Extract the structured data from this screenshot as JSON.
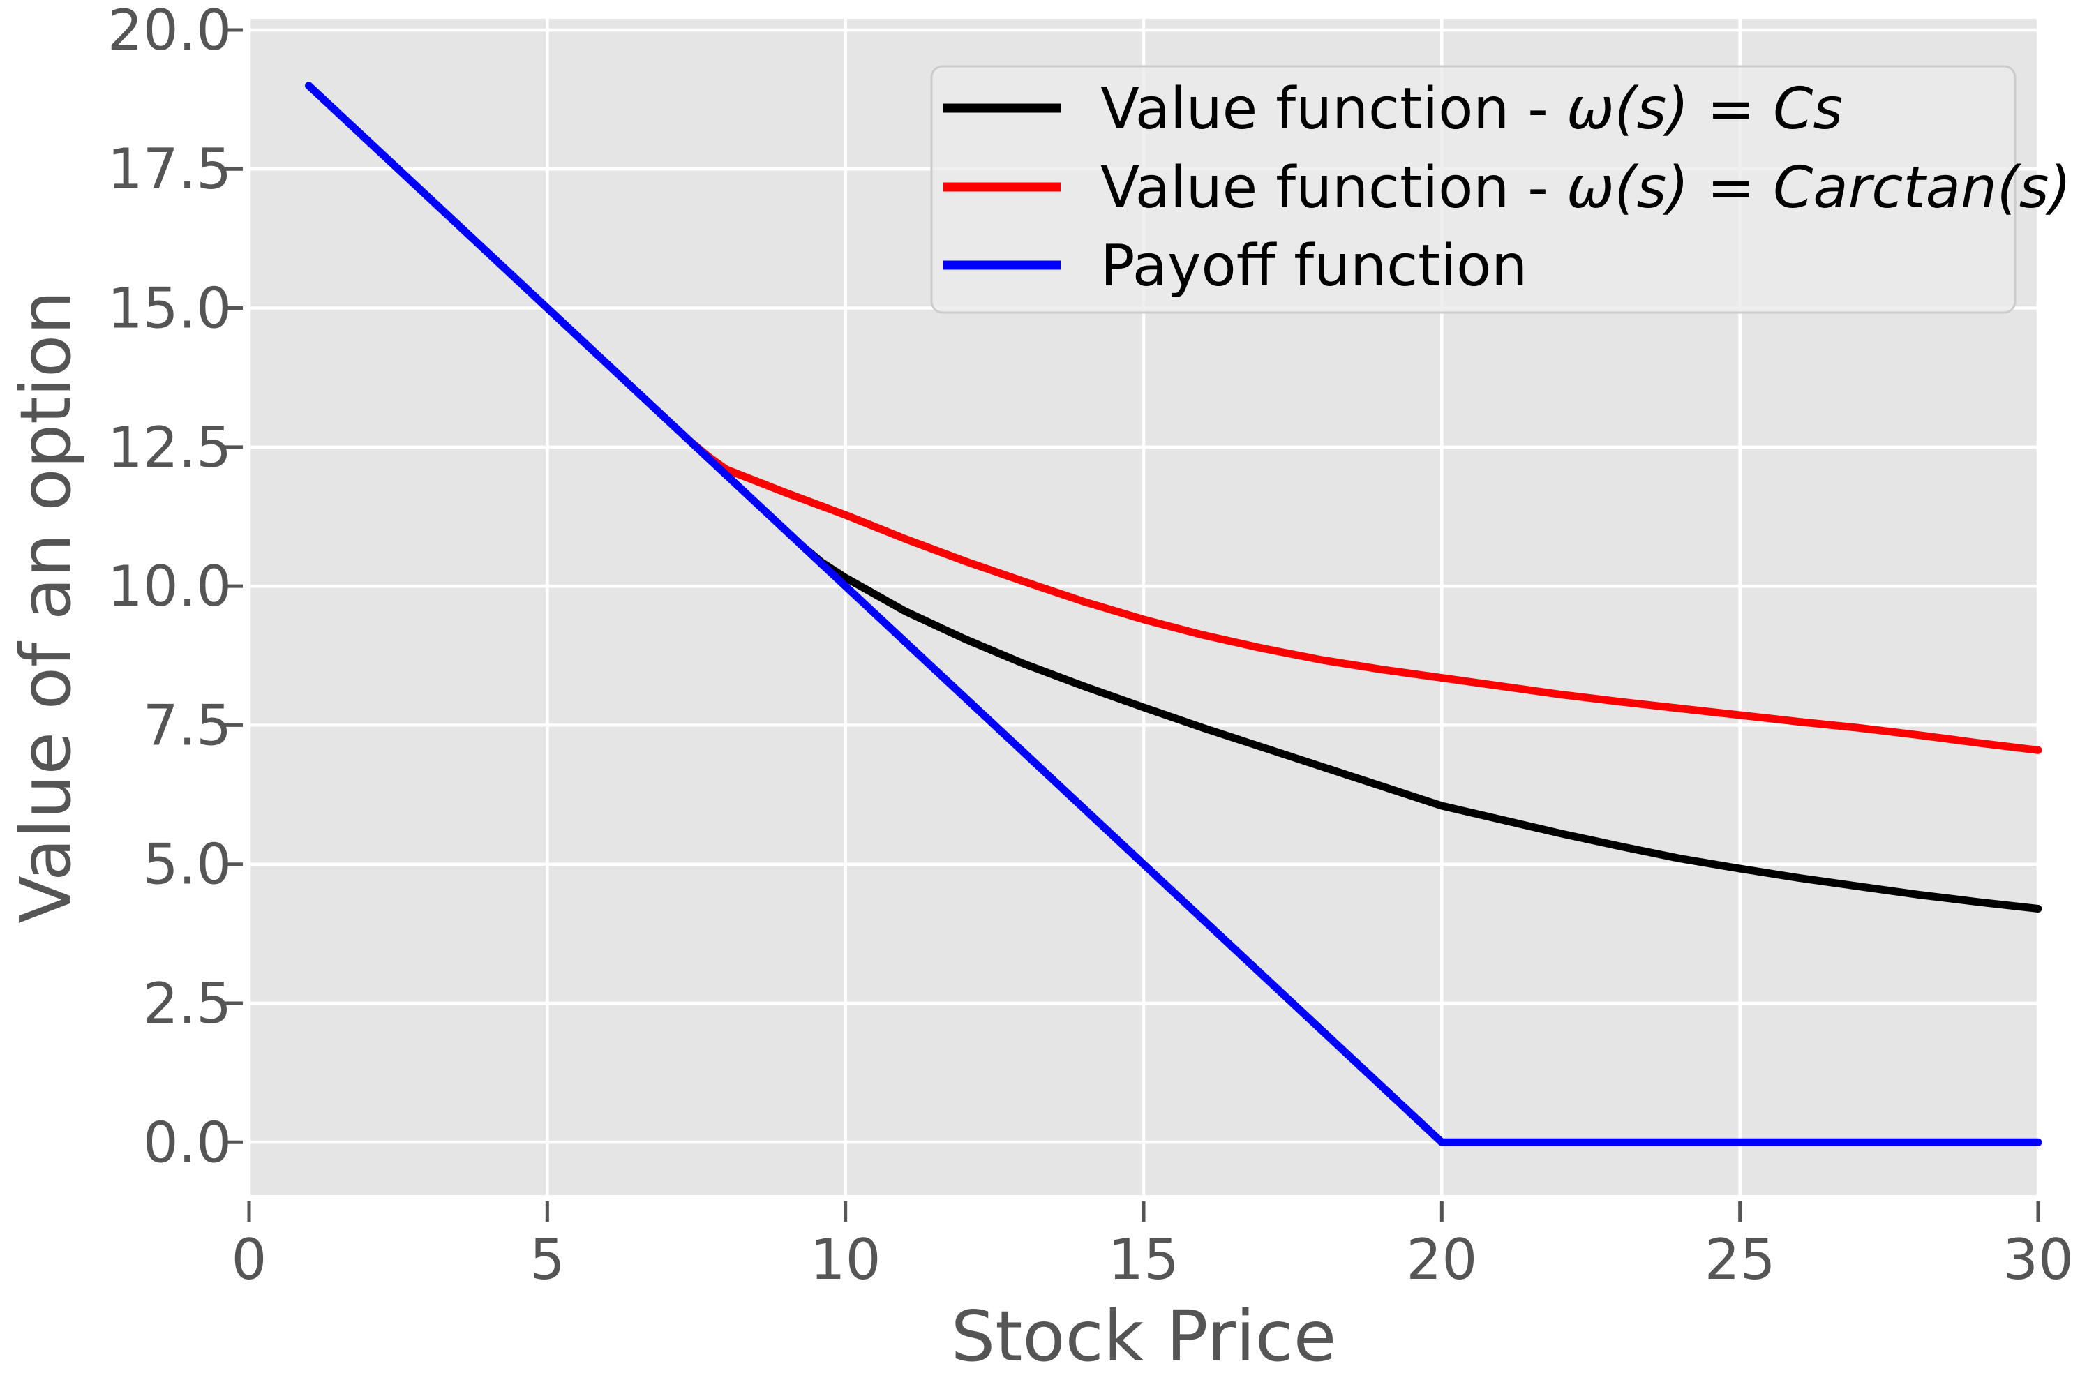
{
  "chart_data": {
    "type": "line",
    "title": "",
    "xlabel": "Stock Price",
    "ylabel": "Value of an option",
    "axes": {
      "xlim": [
        0,
        30
      ],
      "ylim": [
        -0.95,
        20.2
      ],
      "xticks": [
        0,
        5,
        10,
        15,
        20,
        25,
        30
      ],
      "xtick_labels": [
        "0",
        "5",
        "10",
        "15",
        "20",
        "25",
        "30"
      ],
      "yticks": [
        0,
        2.5,
        5,
        7.5,
        10,
        12.5,
        15,
        17.5,
        20
      ],
      "ytick_labels": [
        "0.0",
        "2.5",
        "5.0",
        "7.5",
        "10.0",
        "12.5",
        "15.0",
        "17.5",
        "20.0"
      ],
      "grid": true,
      "legend_position": "upper right"
    },
    "series": [
      {
        "name": "value_function_linear_omega",
        "legend_prefix": "Value function - ",
        "legend_math": "ω(s) = Cs",
        "color": "#000000",
        "points": [
          [
            9.3,
            10.7
          ],
          [
            9.6,
            10.43
          ],
          [
            10,
            10.15
          ],
          [
            11,
            9.55
          ],
          [
            12,
            9.05
          ],
          [
            13,
            8.6
          ],
          [
            14,
            8.2
          ],
          [
            15,
            7.82
          ],
          [
            16,
            7.45
          ],
          [
            17,
            7.1
          ],
          [
            18,
            6.75
          ],
          [
            19,
            6.4
          ],
          [
            20,
            6.05
          ],
          [
            21,
            5.8
          ],
          [
            22,
            5.55
          ],
          [
            23,
            5.32
          ],
          [
            24,
            5.1
          ],
          [
            25,
            4.92
          ],
          [
            26,
            4.75
          ],
          [
            27,
            4.6
          ],
          [
            28,
            4.45
          ],
          [
            29,
            4.32
          ],
          [
            30,
            4.2
          ]
        ]
      },
      {
        "name": "value_function_arctan_omega",
        "legend_prefix": "Value function - ",
        "legend_math": "ω(s) = Carctan(s)",
        "color": "#ff0000",
        "points": [
          [
            7.4,
            12.6
          ],
          [
            7.7,
            12.33
          ],
          [
            8,
            12.1
          ],
          [
            9,
            11.68
          ],
          [
            10,
            11.28
          ],
          [
            11,
            10.85
          ],
          [
            12,
            10.45
          ],
          [
            13,
            10.08
          ],
          [
            14,
            9.72
          ],
          [
            15,
            9.4
          ],
          [
            16,
            9.12
          ],
          [
            17,
            8.88
          ],
          [
            18,
            8.67
          ],
          [
            19,
            8.5
          ],
          [
            20,
            8.35
          ],
          [
            21,
            8.2
          ],
          [
            22,
            8.05
          ],
          [
            23,
            7.92
          ],
          [
            24,
            7.8
          ],
          [
            25,
            7.68
          ],
          [
            26,
            7.56
          ],
          [
            27,
            7.45
          ],
          [
            28,
            7.32
          ],
          [
            29,
            7.18
          ],
          [
            30,
            7.05
          ]
        ]
      },
      {
        "name": "payoff_function",
        "legend_prefix": "Payoff function",
        "legend_math": "",
        "color": "#0000ff",
        "points": [
          [
            1,
            19
          ],
          [
            20,
            0
          ],
          [
            30,
            0
          ]
        ]
      }
    ],
    "colors": {
      "figure_bg": "#ffffff",
      "axes_bg": "#e5e5e5",
      "gridline": "#ffffff",
      "tick": "#555555",
      "legend_bg": "rgba(235,235,235,0.8)",
      "legend_border": "#cccccc"
    }
  }
}
